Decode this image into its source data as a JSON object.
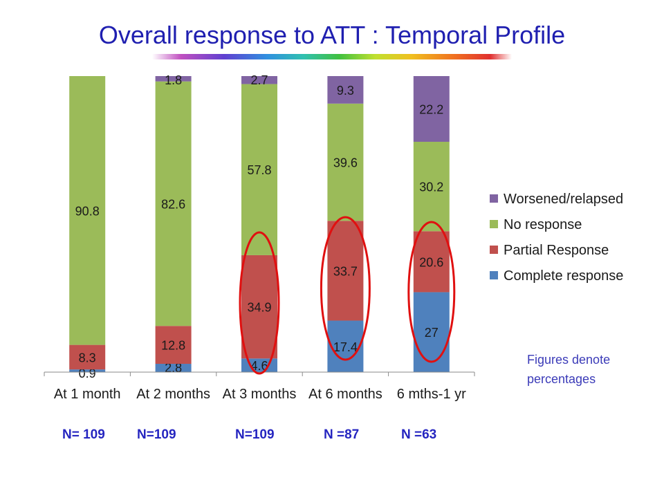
{
  "title": "Overall response to ATT : Temporal Profile",
  "note": "Figures denote percentages",
  "n_labels": [
    "N= 109",
    "N=109",
    "N=109",
    "N =87",
    "N =63"
  ],
  "colors": {
    "worsened": "#8064a2",
    "no_response": "#9bbb59",
    "partial": "#c0504d",
    "complete": "#4f81bd",
    "circle": "#e01010",
    "title": "#1f1fb0"
  },
  "chart_data": {
    "type": "bar",
    "stacked": true,
    "categories": [
      "At 1 month",
      "At 2 months",
      "At 3 months",
      "At 6 months",
      "6 mths-1 yr"
    ],
    "series": [
      {
        "name": "Complete response",
        "values": [
          0.9,
          2.8,
          4.6,
          17.4,
          27
        ],
        "labels": [
          "0.9",
          "2.8",
          "4.6",
          "17.4",
          "27"
        ],
        "color": "#4f81bd"
      },
      {
        "name": "Partial Response",
        "values": [
          8.3,
          12.8,
          34.9,
          33.7,
          20.6
        ],
        "labels": [
          "8.3",
          "12.8",
          "34.9",
          "33.7",
          "20.6"
        ],
        "color": "#c0504d"
      },
      {
        "name": "No response",
        "values": [
          90.8,
          82.6,
          57.8,
          39.6,
          30.2
        ],
        "labels": [
          "90.8",
          "82.6",
          "57.8",
          "39.6",
          "30.2"
        ],
        "color": "#9bbb59"
      },
      {
        "name": "Worsened/relapsed",
        "values": [
          0,
          1.8,
          2.7,
          9.3,
          22.2
        ],
        "labels": [
          "",
          "1.8",
          "2.7",
          "9.3",
          "22.2"
        ],
        "color": "#8064a2"
      }
    ],
    "legend_order": [
      "Worsened/relapsed",
      "No response",
      "Partial Response",
      "Complete response"
    ],
    "legend_position": "right",
    "highlighted_categories": [
      "At 3 months",
      "At 6 months",
      "6 mths-1 yr"
    ],
    "ylim": [
      0,
      100
    ],
    "grid": false
  }
}
